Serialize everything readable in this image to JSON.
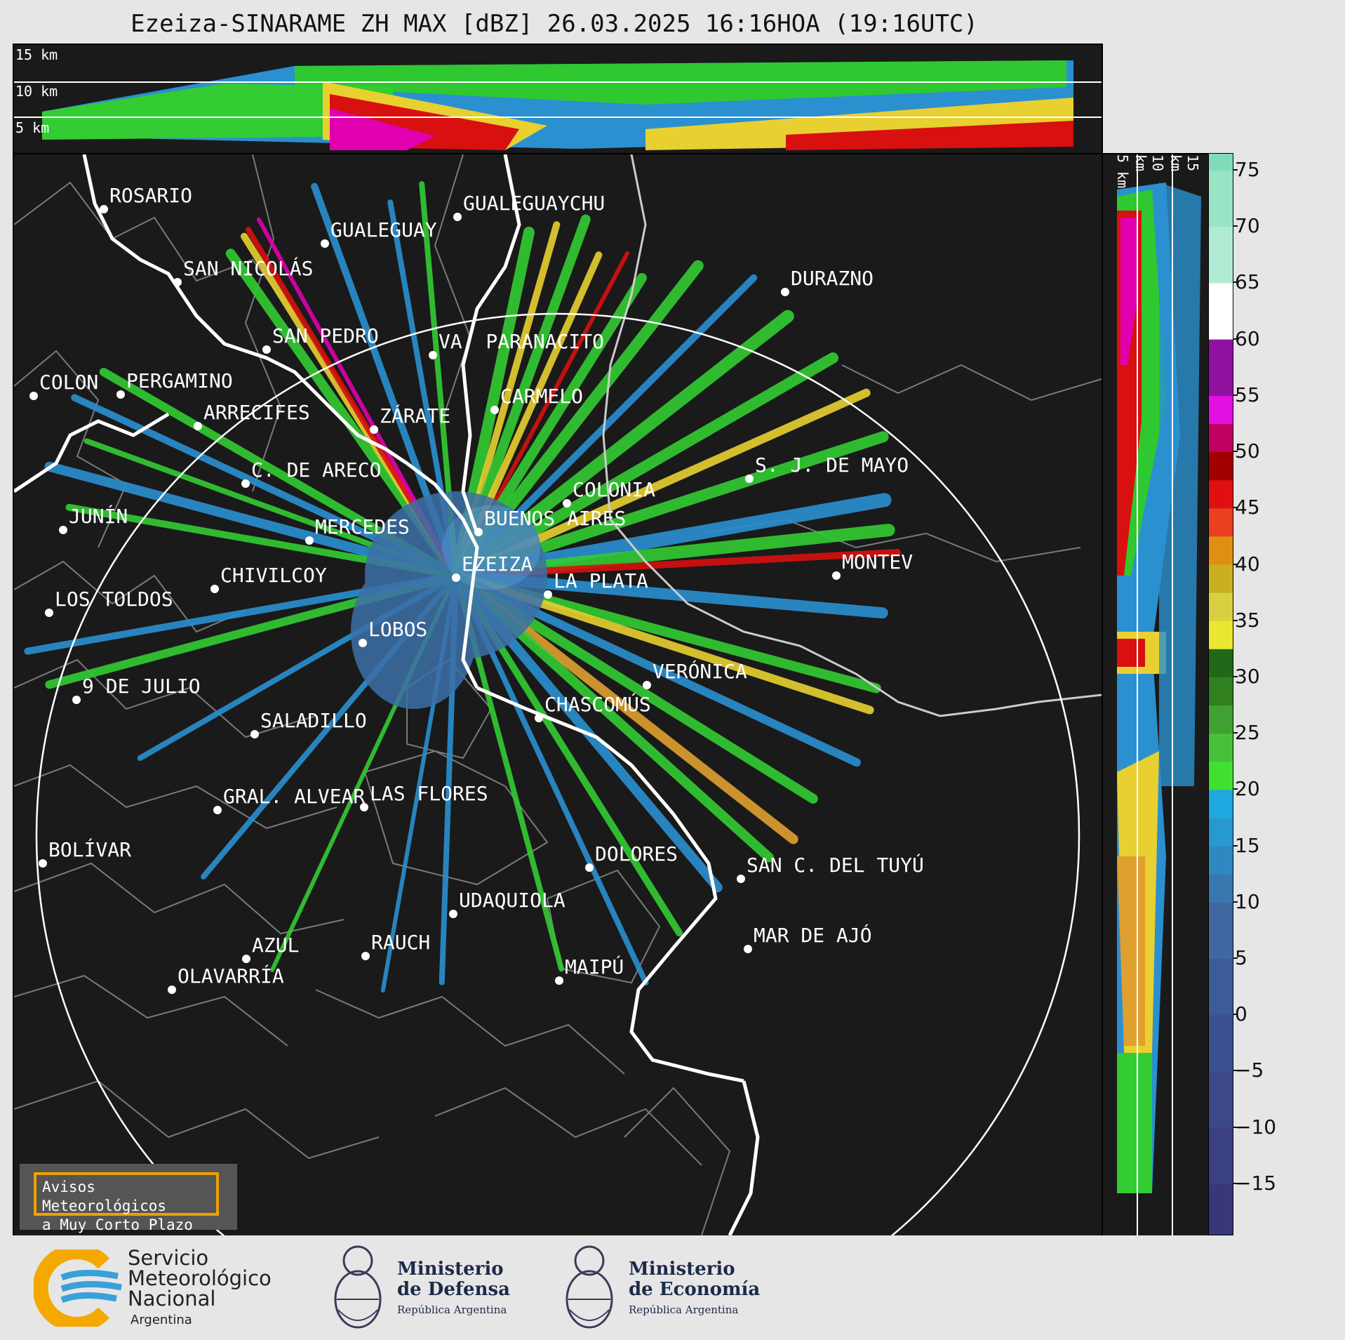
{
  "title": "Ezeiza-SINARAME ZH MAX [dBZ] 26.03.2025 16:16HOA (19:16UTC)",
  "top_panel": {
    "altitudes": [
      "15 km",
      "10 km",
      "5 km"
    ]
  },
  "side_panel": {
    "altitudes": [
      "5 km",
      "10 km",
      "15 km"
    ]
  },
  "colorbar": {
    "ticks": [
      "75",
      "70",
      "65",
      "60",
      "55",
      "50",
      "45",
      "40",
      "35",
      "30",
      "25",
      "20",
      "15",
      "10",
      "5",
      "0",
      "−5",
      "−10",
      "−15"
    ],
    "tick_values": [
      75,
      70,
      65,
      60,
      55,
      50,
      45,
      40,
      35,
      30,
      25,
      20,
      15,
      10,
      5,
      0,
      -5,
      -10,
      -15
    ],
    "range": [
      -19.5,
      76.5
    ],
    "unit": "dBZ"
  },
  "cities": [
    {
      "name": "ROSARIO"
    },
    {
      "name": "GUALEGUAYCHU"
    },
    {
      "name": "GUALEGUAY"
    },
    {
      "name": "SAN NICOLÁS"
    },
    {
      "name": "DURAZNO"
    },
    {
      "name": "SAN PEDRO"
    },
    {
      "name": "VA. PARANACITO"
    },
    {
      "name": "COLON"
    },
    {
      "name": "PERGAMINO"
    },
    {
      "name": "CARMELO"
    },
    {
      "name": "ARRECIFES"
    },
    {
      "name": "ZÁRATE"
    },
    {
      "name": "C. DE ARECO"
    },
    {
      "name": "S. J. DE MAYO"
    },
    {
      "name": "COLONIA"
    },
    {
      "name": "JUNÍN"
    },
    {
      "name": "BUENOS AIRES"
    },
    {
      "name": "MERCEDES"
    },
    {
      "name": "EZEIZA"
    },
    {
      "name": "MONTEV"
    },
    {
      "name": "CHIVILCOY"
    },
    {
      "name": "LA PLATA"
    },
    {
      "name": "LOS TOLDOS"
    },
    {
      "name": "LOBOS"
    },
    {
      "name": "VERÓNICA"
    },
    {
      "name": "9 DE JULIO"
    },
    {
      "name": "CHASCOMÚS"
    },
    {
      "name": "SALADILLO"
    },
    {
      "name": "GRAL. ALVEAR"
    },
    {
      "name": "LAS FLORES"
    },
    {
      "name": "BOLÍVAR"
    },
    {
      "name": "DOLORES"
    },
    {
      "name": "SAN C. DEL TUYÚ"
    },
    {
      "name": "UDAQUIOLA"
    },
    {
      "name": "MAR DE AJÓ"
    },
    {
      "name": "AZUL"
    },
    {
      "name": "RAUCH"
    },
    {
      "name": "MAIPÚ"
    },
    {
      "name": "OLAVARRÍA"
    }
  ],
  "avisos": {
    "line1": "Avisos Meteorológicos",
    "line2": "a Muy Corto Plazo"
  },
  "logos": {
    "smn": {
      "line1": "Servicio",
      "line2": "Meteorológico",
      "line3": "Nacional",
      "country": "Argentina"
    },
    "defensa": {
      "line1": "Ministerio",
      "line2": "de Defensa",
      "sub": "República Argentina"
    },
    "economia": {
      "line1": "Ministerio",
      "line2": "de Economía",
      "sub": "República Argentina"
    }
  },
  "colors": {
    "background": "#1a1a1a",
    "ring": "#ffffff",
    "coast": "#ffffff",
    "borders": "#7a7a7a",
    "avisos_border": "#f0a000"
  }
}
